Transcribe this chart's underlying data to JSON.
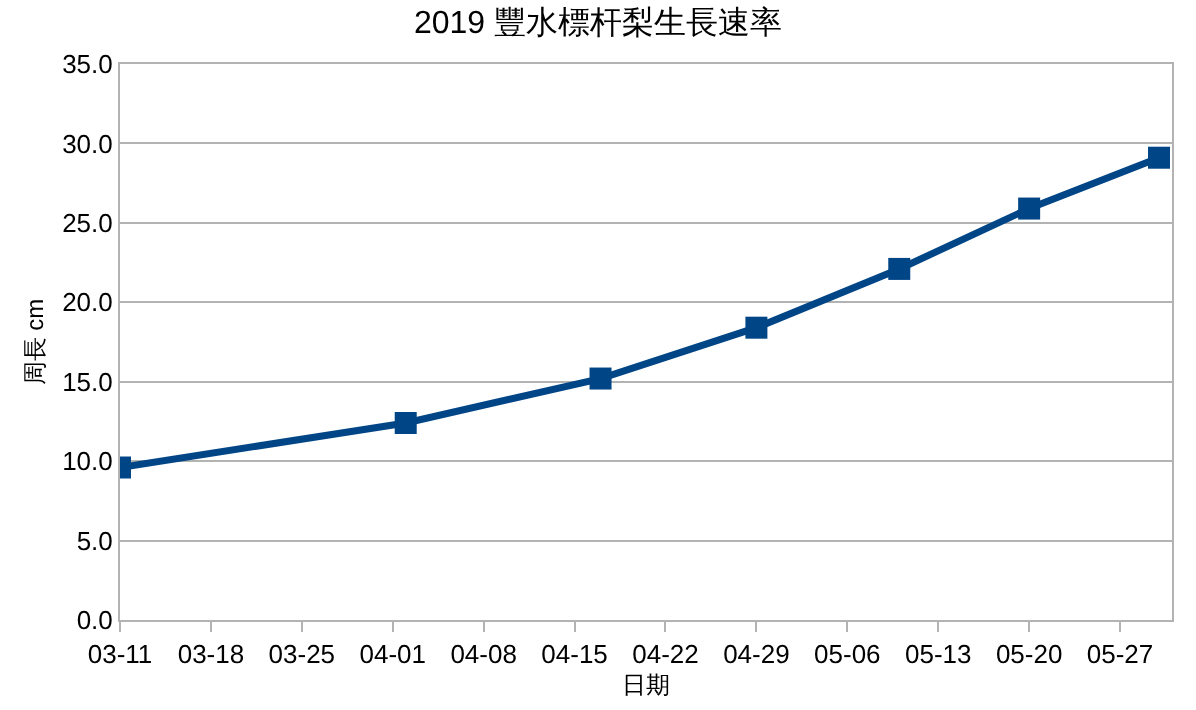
{
  "chart_data": {
    "type": "line",
    "title": "2019 豐水標杆梨生長速率",
    "xlabel": "日期",
    "ylabel": "周長 cm",
    "x": [
      "--03-11",
      "--04-02",
      "--04-17",
      "--04-29",
      "--05-10",
      "--05-20",
      "--05-30"
    ],
    "series": [
      {
        "color": "#004586",
        "values": [
          9.6,
          12.4,
          15.2,
          18.4,
          22.1,
          25.9,
          29.1
        ]
      }
    ],
    "xlim": [
      "--03-11",
      "--05-31"
    ],
    "xticks": [
      {
        "value": "--03-11",
        "label": "03-11"
      },
      {
        "value": "--03-18",
        "label": "03-18"
      },
      {
        "value": "--03-25",
        "label": "03-25"
      },
      {
        "value": "--04-01",
        "label": "04-01"
      },
      {
        "value": "--04-08",
        "label": "04-08"
      },
      {
        "value": "--04-15",
        "label": "04-15"
      },
      {
        "value": "--04-22",
        "label": "04-22"
      },
      {
        "value": "--04-29",
        "label": "04-29"
      },
      {
        "value": "--05-06",
        "label": "05-06"
      },
      {
        "value": "--05-13",
        "label": "05-13"
      },
      {
        "value": "--05-20",
        "label": "05-20"
      },
      {
        "value": "--05-27",
        "label": "05-27"
      }
    ],
    "ylim": [
      0,
      35
    ],
    "yticks": [
      {
        "value": 0,
        "label": "0.0"
      },
      {
        "value": 5,
        "label": "5.0"
      },
      {
        "value": 10,
        "label": "10.0"
      },
      {
        "value": 15,
        "label": "15.0"
      },
      {
        "value": 20,
        "label": "20.0"
      },
      {
        "value": 25,
        "label": "25.0"
      },
      {
        "value": 30,
        "label": "30.0"
      },
      {
        "value": 35,
        "label": "35.0"
      }
    ],
    "grid": "y",
    "marker": "square",
    "line_style": "solid"
  }
}
